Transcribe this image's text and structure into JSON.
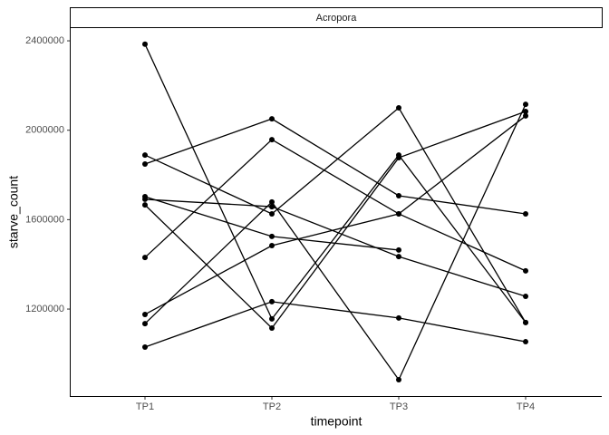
{
  "chart_data": {
    "type": "line",
    "strip": "Acropora",
    "xlabel": "timepoint",
    "ylabel": "starve_count",
    "categories": [
      "TP1",
      "TP2",
      "TP3",
      "TP4"
    ],
    "ylim": [
      811000,
      2461000
    ],
    "yticks": [
      1200000,
      1600000,
      2000000,
      2400000
    ],
    "color": "#000000",
    "series": [
      {
        "values": [
          2385000,
          1156000,
          1889000,
          1140000
        ]
      },
      {
        "values": [
          1889000,
          1626000,
          2100000,
          1140000
        ]
      },
      {
        "values": [
          1849000,
          2051000,
          1707000,
          1626000
        ]
      },
      {
        "values": [
          1703000,
          1525000,
          1464000,
          null
        ]
      },
      {
        "values": [
          1691000,
          1658000,
          1435000,
          1257000
        ]
      },
      {
        "values": [
          1666000,
          1115000,
          1877000,
          2084000
        ]
      },
      {
        "values": [
          1431000,
          1958000,
          1626000,
          1371000
        ]
      },
      {
        "values": [
          1176000,
          1484000,
          1626000,
          2064000
        ]
      },
      {
        "values": [
          1135000,
          1679000,
          884000,
          2116000
        ]
      },
      {
        "values": [
          1030000,
          1233000,
          1160000,
          1054000
        ]
      }
    ]
  }
}
